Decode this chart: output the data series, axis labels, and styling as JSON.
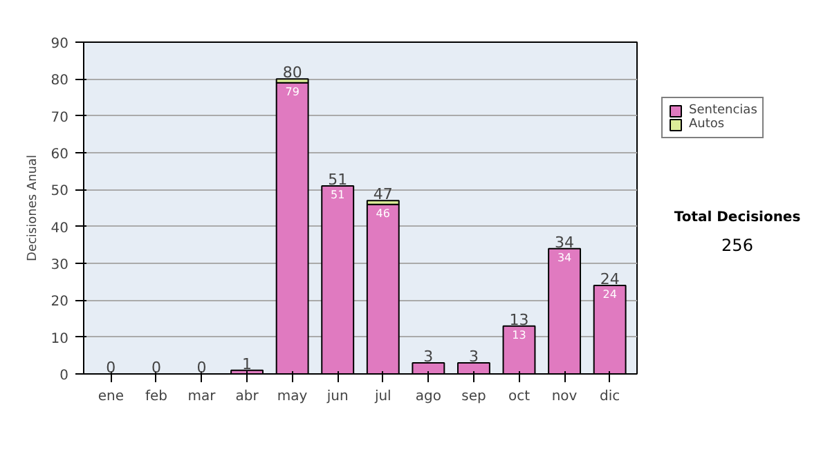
{
  "chart_data": {
    "type": "bar",
    "stacked": true,
    "ylabel": "Decisiones Anual",
    "categories": [
      "ene",
      "feb",
      "mar",
      "abr",
      "may",
      "jun",
      "jul",
      "ago",
      "sep",
      "oct",
      "nov",
      "dic"
    ],
    "series": [
      {
        "name": "Sentencias",
        "color": "#e07ac0",
        "values": [
          0,
          0,
          0,
          1,
          79,
          51,
          46,
          3,
          3,
          13,
          34,
          24
        ],
        "value_labels": [
          null,
          null,
          null,
          null,
          "79",
          "51",
          "46",
          null,
          null,
          "13",
          "34",
          "24"
        ]
      },
      {
        "name": "Autos",
        "color": "#ddee99",
        "values": [
          0,
          0,
          0,
          0,
          1,
          0,
          1,
          0,
          0,
          0,
          0,
          0
        ]
      }
    ],
    "totals": [
      "0",
      "0",
      "0",
      "1",
      "80",
      "51",
      "47",
      "3",
      "3",
      "13",
      "34",
      "24"
    ],
    "ylim": [
      0,
      90
    ],
    "yticks": [
      0,
      10,
      20,
      30,
      40,
      50,
      60,
      70,
      80,
      90
    ],
    "grid": "y",
    "legend": "right",
    "annotations": [
      "Total Decisiones",
      "256"
    ]
  }
}
